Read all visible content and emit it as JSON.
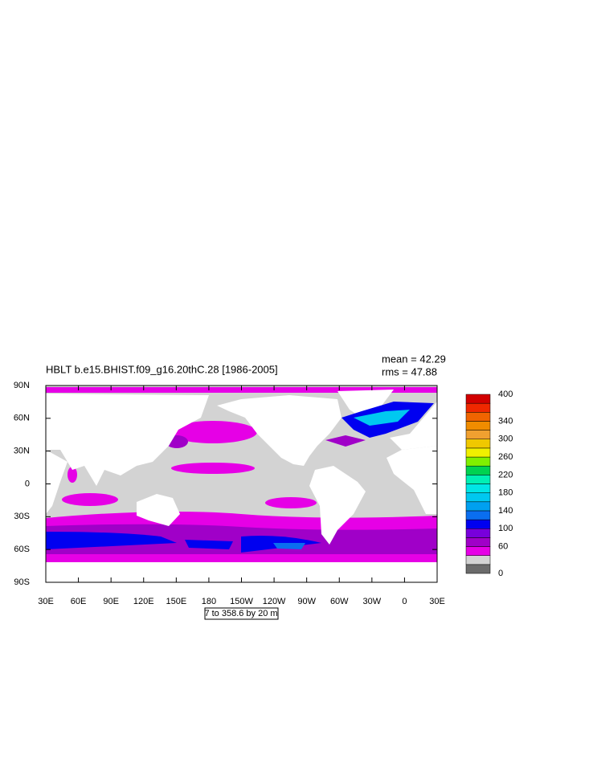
{
  "map": {
    "title": "HBLT b.e15.BHIST.f09_g16.20thC.28 [1986-2005]",
    "mean": "mean = 42.29",
    "rms": "rms = 47.88",
    "lat_labels": [
      "90N",
      "60N",
      "30N",
      "0",
      "30S",
      "60S",
      "90S"
    ],
    "lon_labels": [
      "30E",
      "60E",
      "90E",
      "120E",
      "150E",
      "180",
      "150W",
      "120W",
      "90W",
      "60W",
      "30W",
      "0",
      "30E"
    ],
    "contour_info": "7 to 358.6 by 20 m",
    "colorbar": {
      "lim": [
        0,
        400
      ],
      "ticks": [
        0,
        60,
        100,
        140,
        180,
        220,
        260,
        300,
        340,
        400
      ],
      "colors": [
        "#6b6b6b",
        "#d3d3d3",
        "#e600e6",
        "#a000c8",
        "#7800dc",
        "#0000f0",
        "#0a6ef0",
        "#00a0f0",
        "#00c8f0",
        "#00e6e6",
        "#00f0b4",
        "#00d250",
        "#80f000",
        "#f0f000",
        "#f0c800",
        "#f0a030",
        "#f08c00",
        "#f06400",
        "#f02800",
        "#d20000"
      ]
    }
  }
}
